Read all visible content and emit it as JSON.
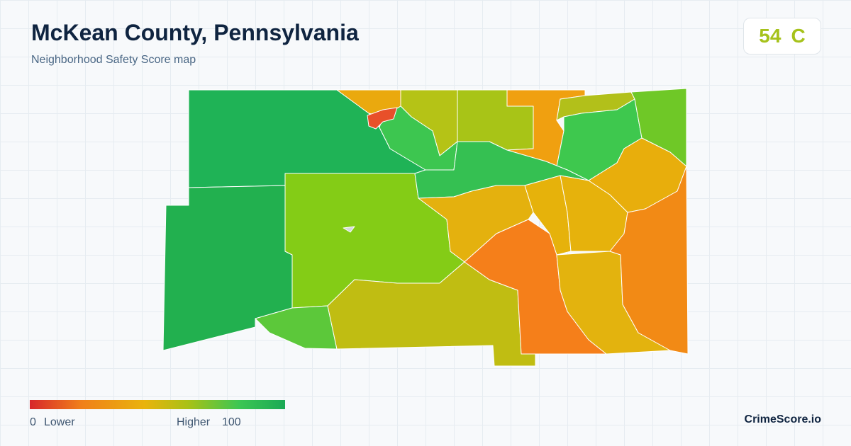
{
  "header": {
    "title": "McKean County, Pennsylvania",
    "subtitle": "Neighborhood Safety Score map"
  },
  "score": {
    "value": 54,
    "grade": "C"
  },
  "legend": {
    "min": 0,
    "min_label": "Lower",
    "max_label": "Higher",
    "max": 100
  },
  "brand": "CrimeScore.io"
}
